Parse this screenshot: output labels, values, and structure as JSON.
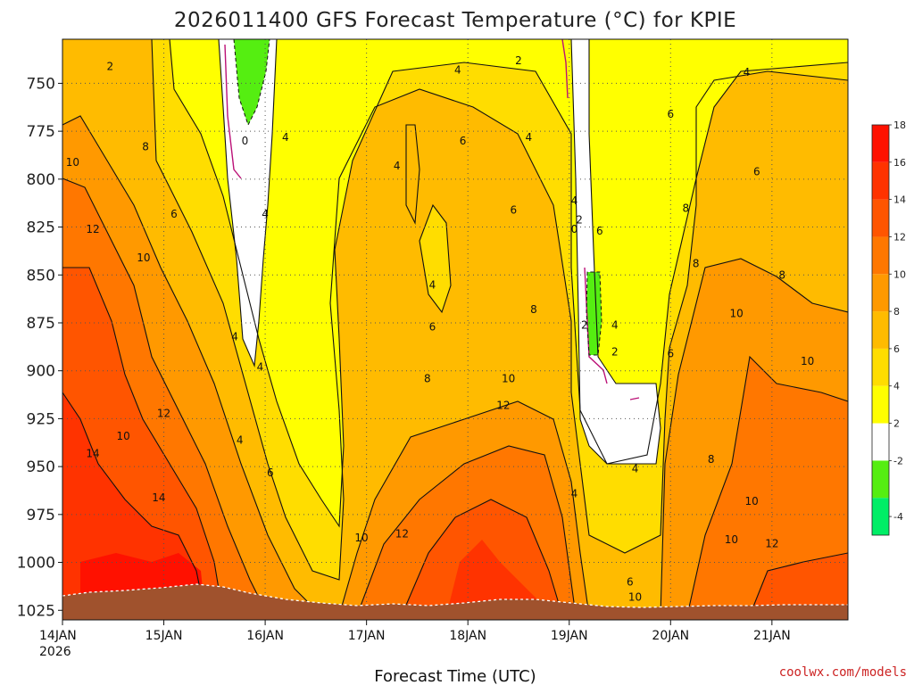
{
  "chart_data": {
    "type": "heatmap",
    "title": "2026011400 GFS Forecast Temperature (°C) for KPIE",
    "xlabel": "Forecast Time (UTC)",
    "ylabel": "",
    "credit": "coolwx.com/models",
    "x_ticks": [
      "14JAN",
      "15JAN",
      "16JAN",
      "17JAN",
      "18JAN",
      "19JAN",
      "20JAN",
      "21JAN"
    ],
    "x_year": "2026",
    "x_range_days": [
      0,
      7.75
    ],
    "y_ticks": [
      750,
      775,
      800,
      825,
      850,
      875,
      900,
      925,
      950,
      975,
      1000,
      1025
    ],
    "y_range_hpa": [
      727,
      1030
    ],
    "colorbar": {
      "levels": [
        -4,
        -2,
        0,
        2,
        4,
        6,
        8,
        10,
        12,
        14,
        16,
        18
      ],
      "tick_labels": [
        "-4",
        "-2",
        "2",
        "4",
        "6",
        "8",
        "10",
        "12",
        "14",
        "16",
        "18"
      ],
      "colors": [
        "#00ee66",
        "#55ee11",
        "#ffffff",
        "#ffff00",
        "#ffdd00",
        "#ffbb00",
        "#ff9900",
        "#ff7700",
        "#ff5500",
        "#ff3300",
        "#ff1100"
      ]
    },
    "contour_labels": [
      {
        "text": "2",
        "t": 0.47,
        "p": 743
      },
      {
        "text": "0",
        "t": 1.8,
        "p": 782
      },
      {
        "text": "8",
        "t": 0.82,
        "p": 785
      },
      {
        "text": "10",
        "t": 0.1,
        "p": 793
      },
      {
        "text": "6",
        "t": 1.1,
        "p": 820
      },
      {
        "text": "12",
        "t": 0.3,
        "p": 828
      },
      {
        "text": "10",
        "t": 0.8,
        "p": 843
      },
      {
        "text": "4",
        "t": 2.2,
        "p": 780
      },
      {
        "text": "4",
        "t": 3.3,
        "p": 795
      },
      {
        "text": "4",
        "t": 2.0,
        "p": 820
      },
      {
        "text": "4",
        "t": 1.7,
        "p": 884
      },
      {
        "text": "4",
        "t": 1.95,
        "p": 900
      },
      {
        "text": "12",
        "t": 1.0,
        "p": 924
      },
      {
        "text": "10",
        "t": 0.6,
        "p": 936
      },
      {
        "text": "14",
        "t": 0.3,
        "p": 945
      },
      {
        "text": "14",
        "t": 0.95,
        "p": 968
      },
      {
        "text": "4",
        "t": 1.75,
        "p": 938
      },
      {
        "text": "6",
        "t": 2.05,
        "p": 955
      },
      {
        "text": "4",
        "t": 3.9,
        "p": 745
      },
      {
        "text": "6",
        "t": 3.95,
        "p": 782
      },
      {
        "text": "6",
        "t": 4.45,
        "p": 818
      },
      {
        "text": "4",
        "t": 3.65,
        "p": 857
      },
      {
        "text": "6",
        "t": 3.65,
        "p": 879
      },
      {
        "text": "8",
        "t": 3.6,
        "p": 906
      },
      {
        "text": "10",
        "t": 4.4,
        "p": 906
      },
      {
        "text": "12",
        "t": 4.35,
        "p": 920
      },
      {
        "text": "10",
        "t": 2.95,
        "p": 989
      },
      {
        "text": "12",
        "t": 3.35,
        "p": 987
      },
      {
        "text": "2",
        "t": 4.5,
        "p": 740
      },
      {
        "text": "4",
        "t": 4.6,
        "p": 780
      },
      {
        "text": "8",
        "t": 4.65,
        "p": 870
      },
      {
        "text": "4",
        "t": 5.05,
        "p": 813
      },
      {
        "text": "2",
        "t": 5.1,
        "p": 823
      },
      {
        "text": "0",
        "t": 5.05,
        "p": 828
      },
      {
        "text": "6",
        "t": 5.3,
        "p": 829
      },
      {
        "text": "2",
        "t": 5.15,
        "p": 878
      },
      {
        "text": "4",
        "t": 5.45,
        "p": 878
      },
      {
        "text": "2",
        "t": 5.45,
        "p": 892
      },
      {
        "text": "4",
        "t": 5.05,
        "p": 966
      },
      {
        "text": "4",
        "t": 5.65,
        "p": 953
      },
      {
        "text": "6",
        "t": 5.6,
        "p": 1012
      },
      {
        "text": "10",
        "t": 5.65,
        "p": 1020
      },
      {
        "text": "4",
        "t": 6.75,
        "p": 746
      },
      {
        "text": "6",
        "t": 6.0,
        "p": 768
      },
      {
        "text": "6",
        "t": 6.85,
        "p": 798
      },
      {
        "text": "8",
        "t": 6.15,
        "p": 817
      },
      {
        "text": "8",
        "t": 6.25,
        "p": 846
      },
      {
        "text": "8",
        "t": 7.1,
        "p": 852
      },
      {
        "text": "6",
        "t": 6.0,
        "p": 893
      },
      {
        "text": "10",
        "t": 6.65,
        "p": 872
      },
      {
        "text": "10",
        "t": 7.35,
        "p": 897
      },
      {
        "text": "8",
        "t": 6.4,
        "p": 948
      },
      {
        "text": "10",
        "t": 6.8,
        "p": 970
      },
      {
        "text": "10",
        "t": 6.6,
        "p": 990
      },
      {
        "text": "12",
        "t": 7.0,
        "p": 992
      }
    ]
  }
}
